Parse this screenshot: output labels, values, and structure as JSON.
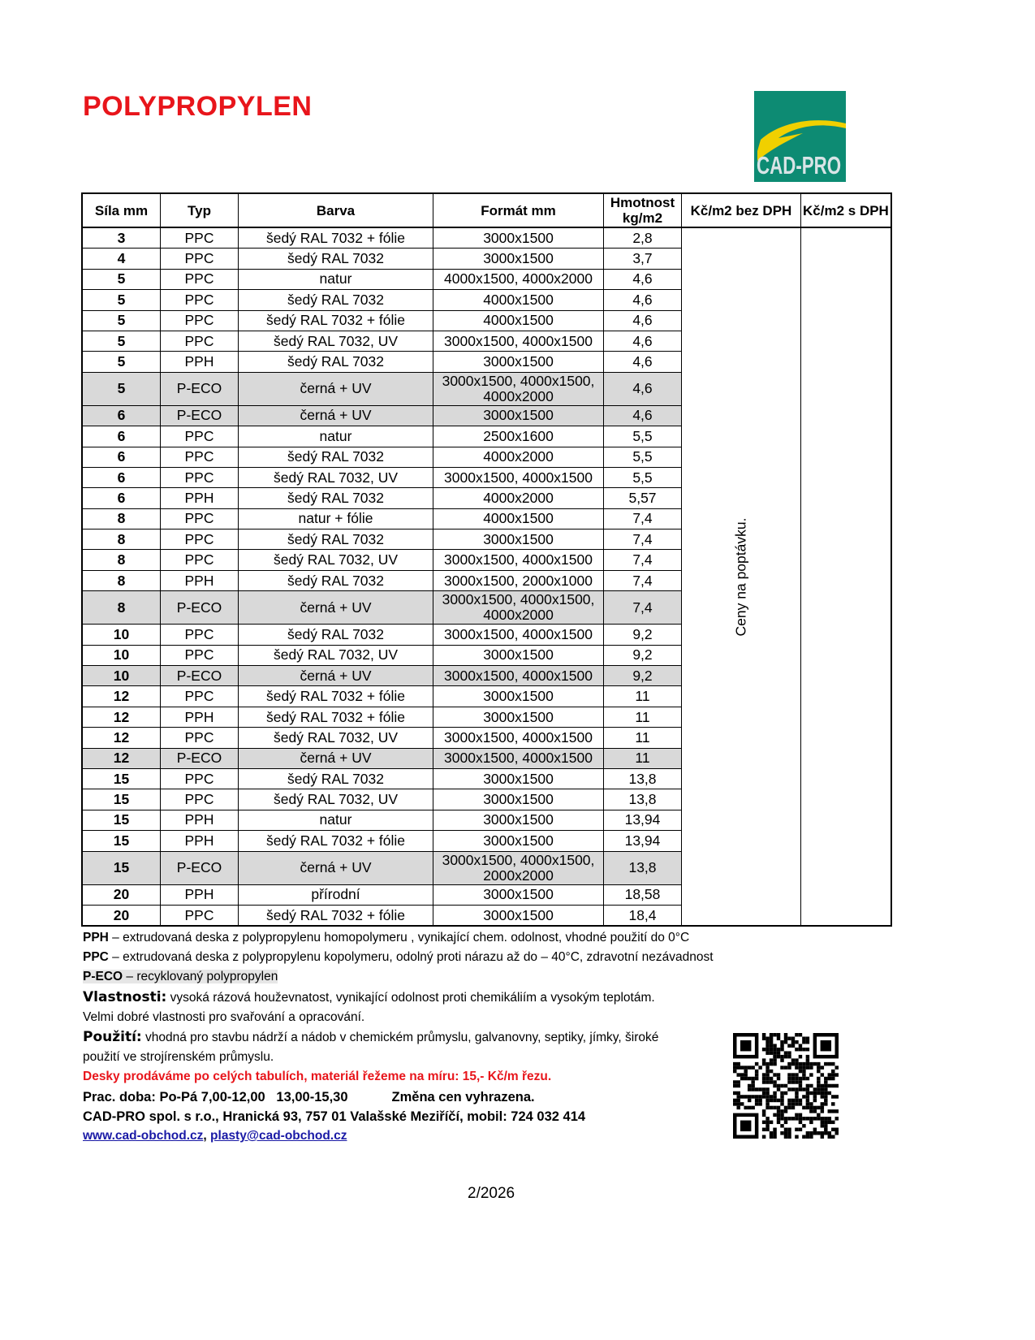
{
  "title": "POLYPROPYLEN",
  "logo": {
    "text": "CAD-PRO",
    "bg": "#0d8b73",
    "swoosh": "#f0d000"
  },
  "table": {
    "headers": [
      "Síla mm",
      "Typ",
      "Barva",
      "Formát mm",
      "Hmotnost kg/m2",
      "Kč/m2 bez DPH",
      "Kč/m2 s DPH"
    ],
    "price_note": "Ceny na poptávku.",
    "rows": [
      [
        "3",
        "PPC",
        "šedý RAL 7032 + fólie",
        "3000x1500",
        "2,8"
      ],
      [
        "4",
        "PPC",
        "šedý RAL 7032",
        "3000x1500",
        "3,7"
      ],
      [
        "5",
        "PPC",
        "natur",
        "4000x1500, 4000x2000",
        "4,6"
      ],
      [
        "5",
        "PPC",
        "šedý RAL 7032",
        "4000x1500",
        "4,6"
      ],
      [
        "5",
        "PPC",
        "šedý RAL 7032 + fólie",
        "4000x1500",
        "4,6"
      ],
      [
        "5",
        "PPC",
        "šedý RAL 7032, UV",
        "3000x1500, 4000x1500",
        "4,6"
      ],
      [
        "5",
        "PPH",
        "šedý RAL 7032",
        "3000x1500",
        "4,6"
      ],
      [
        "5",
        "P-ECO",
        "černá + UV",
        "3000x1500, 4000x1500, 4000x2000",
        "4,6"
      ],
      [
        "6",
        "P-ECO",
        "černá + UV",
        "3000x1500",
        "4,6"
      ],
      [
        "6",
        "PPC",
        "natur",
        "2500x1600",
        "5,5"
      ],
      [
        "6",
        "PPC",
        "šedý RAL 7032",
        "4000x2000",
        "5,5"
      ],
      [
        "6",
        "PPC",
        "šedý RAL 7032, UV",
        "3000x1500, 4000x1500",
        "5,5"
      ],
      [
        "6",
        "PPH",
        "šedý RAL 7032",
        "4000x2000",
        "5,57"
      ],
      [
        "8",
        "PPC",
        "natur + fólie",
        "4000x1500",
        "7,4"
      ],
      [
        "8",
        "PPC",
        "šedý RAL 7032",
        "3000x1500",
        "7,4"
      ],
      [
        "8",
        "PPC",
        "šedý RAL 7032, UV",
        "3000x1500, 4000x1500",
        "7,4"
      ],
      [
        "8",
        "PPH",
        "šedý RAL 7032",
        "3000x1500, 2000x1000",
        "7,4"
      ],
      [
        "8",
        "P-ECO",
        "černá + UV",
        "3000x1500, 4000x1500, 4000x2000",
        "7,4"
      ],
      [
        "10",
        "PPC",
        "šedý RAL 7032",
        "3000x1500, 4000x1500",
        "9,2"
      ],
      [
        "10",
        "PPC",
        "šedý RAL 7032, UV",
        "3000x1500",
        "9,2"
      ],
      [
        "10",
        "P-ECO",
        "černá + UV",
        "3000x1500, 4000x1500",
        "9,2"
      ],
      [
        "12",
        "PPC",
        "šedý RAL 7032 + fólie",
        "3000x1500",
        "11"
      ],
      [
        "12",
        "PPH",
        "šedý RAL 7032 + fólie",
        "3000x1500",
        "11"
      ],
      [
        "12",
        "PPC",
        "šedý RAL 7032, UV",
        "3000x1500, 4000x1500",
        "11"
      ],
      [
        "12",
        "P-ECO",
        "černá + UV",
        "3000x1500, 4000x1500",
        "11"
      ],
      [
        "15",
        "PPC",
        "šedý RAL 7032",
        "3000x1500",
        "13,8"
      ],
      [
        "15",
        "PPC",
        "šedý RAL 7032, UV",
        "3000x1500",
        "13,8"
      ],
      [
        "15",
        "PPH",
        "natur",
        "3000x1500",
        "13,94"
      ],
      [
        "15",
        "PPH",
        "šedý RAL 7032 + fólie",
        "3000x1500",
        "13,94"
      ],
      [
        "15",
        "P-ECO",
        "černá + UV",
        "3000x1500, 4000x1500, 2000x2000",
        "13,8"
      ],
      [
        "20",
        "PPH",
        "přírodní",
        "3000x1500",
        "18,58"
      ],
      [
        "20",
        "PPC",
        "šedý RAL 7032 + fólie",
        "3000x1500",
        "18,4"
      ]
    ]
  },
  "notes": {
    "pph_label": "PPH",
    "pph_text": " – extrudovaná deska z polypropylenu homopolymeru , vynikající chem. odolnost, vhodné použití do 0°C",
    "ppc_label": "PPC",
    "ppc_text": " – extrudovaná deska z polypropylenu kopolymeru, odolný proti nárazu až do – 40°C, zdravotní nezávadnost",
    "peco_label": "P-ECO",
    "peco_text": " – recyklovaný polypropylen",
    "vlastnosti_label": "Vlastnosti:",
    "vlastnosti_text": " vysoká rázová houževnatost, vynikající odolnost proti chemikáliím a vysokým teplotám.",
    "vlastnosti_text2": "Velmi dobré vlastnosti pro svařování a opracování.",
    "pouziti_label": "Použití:",
    "pouziti_text": " vhodná pro stavbu nádrží a nádob v chemickém průmyslu, galvanovny, septiky, jímky, široké",
    "pouziti_text2": "použití ve strojírenském průmyslu.",
    "sale_note": "Desky prodáváme po celých tabulích, materiál řežeme na míru: 15,- Kč/m řezu.",
    "hours": "Prac. doba: Po-Pá 7,00-12,00   13,00-15,30",
    "price_change": "Změna cen vyhrazena.",
    "company": "CAD-PRO spol. s r.o., Hranická 93, 757 01 Valašské Meziříčí, mobil: 724 032 414",
    "web": "www.cad-obchod.cz",
    "email": "plasty@cad-obchod.cz"
  },
  "page_number": "2/2026"
}
